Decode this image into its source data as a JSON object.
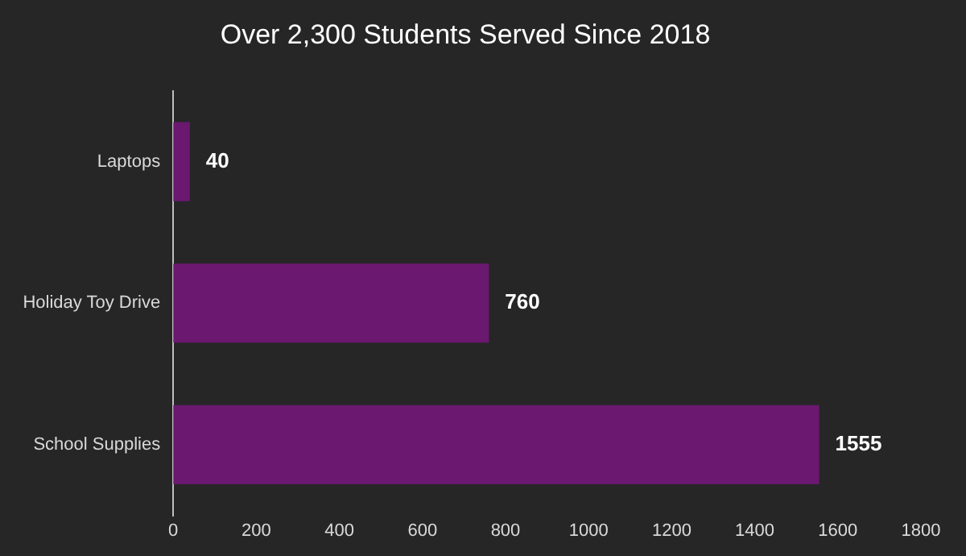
{
  "chart_data": {
    "type": "bar",
    "orientation": "horizontal",
    "title": "Over 2,300 Students Served Since 2018",
    "categories": [
      "Laptops",
      "Holiday Toy Drive",
      "School Supplies"
    ],
    "values": [
      40,
      760,
      1555
    ],
    "color": "#6a1870",
    "xlim": [
      0,
      1800
    ],
    "xticks": [
      0,
      200,
      400,
      600,
      800,
      1000,
      1200,
      1400,
      1600,
      1800
    ],
    "grid": false,
    "legend": false,
    "data_labels": true
  }
}
